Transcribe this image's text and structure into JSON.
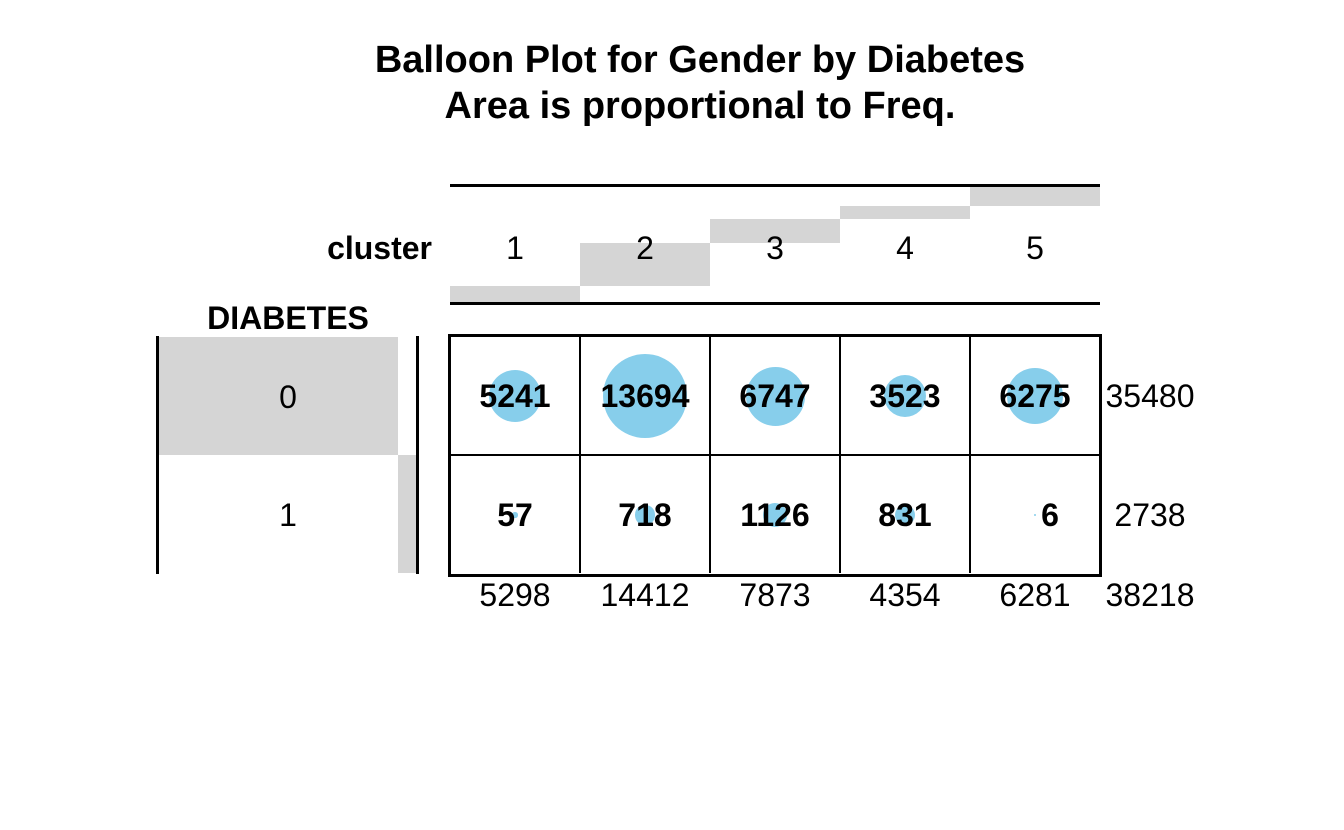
{
  "chart_data": {
    "type": "balloon",
    "title": "Balloon Plot for Gender by Diabetes",
    "subtitle": "Area is proportional to Freq.",
    "column_variable": "cluster",
    "row_variable": "DIABETES",
    "columns": [
      "1",
      "2",
      "3",
      "4",
      "5"
    ],
    "rows": [
      "0",
      "1"
    ],
    "values": [
      [
        5241,
        13694,
        6747,
        3523,
        6275
      ],
      [
        57,
        718,
        1126,
        831,
        6
      ]
    ],
    "row_totals": [
      35480,
      2738
    ],
    "col_totals": [
      5298,
      14412,
      7873,
      4354,
      6281
    ],
    "grand_total": 38218,
    "balloon_color": "#87CEEB",
    "marginal_bar_color": "#d5d5d5",
    "legend_note": "Area is proportional to Freq."
  }
}
